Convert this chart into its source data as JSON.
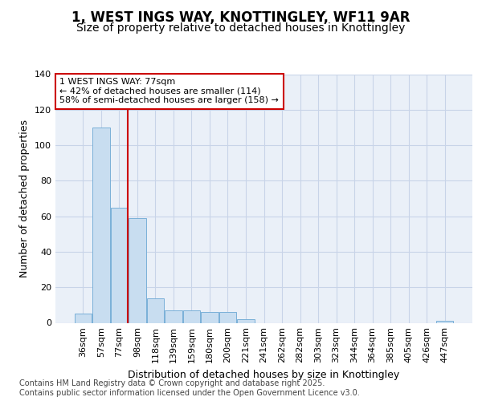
{
  "title1": "1, WEST INGS WAY, KNOTTINGLEY, WF11 9AR",
  "title2": "Size of property relative to detached houses in Knottingley",
  "xlabel": "Distribution of detached houses by size in Knottingley",
  "ylabel": "Number of detached properties",
  "categories": [
    "36sqm",
    "57sqm",
    "77sqm",
    "98sqm",
    "118sqm",
    "139sqm",
    "159sqm",
    "180sqm",
    "200sqm",
    "221sqm",
    "241sqm",
    "262sqm",
    "282sqm",
    "303sqm",
    "323sqm",
    "344sqm",
    "364sqm",
    "385sqm",
    "405sqm",
    "426sqm",
    "447sqm"
  ],
  "values": [
    5,
    110,
    65,
    59,
    14,
    7,
    7,
    6,
    6,
    2,
    0,
    0,
    0,
    0,
    0,
    0,
    0,
    0,
    0,
    0,
    1
  ],
  "bar_color": "#c8ddf0",
  "bar_edge_color": "#7ab0d8",
  "highlight_index": 2,
  "highlight_line_color": "#cc0000",
  "annotation_text": "1 WEST INGS WAY: 77sqm\n← 42% of detached houses are smaller (114)\n58% of semi-detached houses are larger (158) →",
  "annotation_box_color": "#ffffff",
  "annotation_box_edge_color": "#cc0000",
  "ylim": [
    0,
    140
  ],
  "yticks": [
    0,
    20,
    40,
    60,
    80,
    100,
    120,
    140
  ],
  "grid_color": "#c8d4e8",
  "plot_bg_color": "#eaf0f8",
  "fig_bg_color": "#ffffff",
  "footer_text": "Contains HM Land Registry data © Crown copyright and database right 2025.\nContains public sector information licensed under the Open Government Licence v3.0.",
  "title_fontsize": 12,
  "subtitle_fontsize": 10,
  "tick_fontsize": 8,
  "ylabel_fontsize": 9,
  "xlabel_fontsize": 9,
  "footer_fontsize": 7
}
